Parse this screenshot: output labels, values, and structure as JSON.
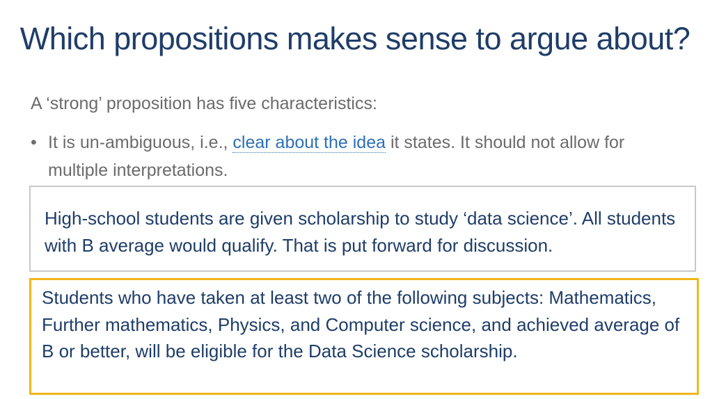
{
  "slide": {
    "title": "Which propositions makes sense to argue about?",
    "intro": "A ‘strong’ proposition has five characteristics:",
    "bullet": {
      "marker": "•",
      "text_before": "It is un-ambiguous, i.e., ",
      "highlight": "clear about the idea",
      "text_after": " it states. It should not allow for multiple interpretations."
    },
    "example_weak": "High-school students are given scholarship to study ‘data science’. All students with B average would qualify. That is put forward for discussion.",
    "example_strong": "Students who have taken at least two of the following subjects: Mathematics, Further mathematics, Physics, and Computer science, and achieved average of B or better, will be eligible for the Data Science scholarship."
  },
  "colors": {
    "title": "#1f3d68",
    "body_text": "#6b6b6b",
    "highlight": "#2e6fb5",
    "weak_box_border": "#c8c8c8",
    "strong_box_border": "#f0b61c"
  }
}
